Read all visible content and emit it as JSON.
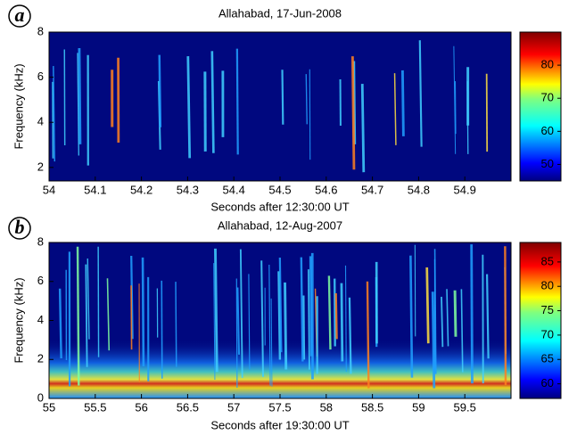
{
  "chart_data": [
    {
      "type": "spectrogram",
      "panel_label": "a",
      "title": "Allahabad, 17-Jun-2008",
      "x_label": "Seconds after 12:30:00 UT",
      "y_label": "Frequency (kHz)",
      "xlim": [
        54,
        55
      ],
      "xticks": [
        54,
        54.1,
        54.2,
        54.3,
        54.4,
        54.5,
        54.6,
        54.7,
        54.8,
        54.9
      ],
      "ylim": [
        1.4,
        8
      ],
      "yticks": [
        2,
        4,
        6,
        8
      ],
      "colormap": "jet",
      "clim": [
        45,
        90
      ],
      "cticks": [
        50,
        60,
        70,
        80
      ]
    },
    {
      "type": "spectrogram",
      "panel_label": "b",
      "title": "Allahabad, 12-Aug-2007",
      "x_label": "Seconds after 19:30:00 UT",
      "y_label": "Frequency (kHz)",
      "xlim": [
        55,
        60
      ],
      "xticks": [
        55,
        55.5,
        56,
        56.5,
        57,
        57.5,
        58,
        58.5,
        59,
        59.5
      ],
      "ylim": [
        0,
        8
      ],
      "yticks": [
        0,
        2,
        4,
        6,
        8
      ],
      "colormap": "jet",
      "clim": [
        57,
        89
      ],
      "cticks": [
        60,
        65,
        70,
        75,
        80,
        85
      ]
    }
  ]
}
